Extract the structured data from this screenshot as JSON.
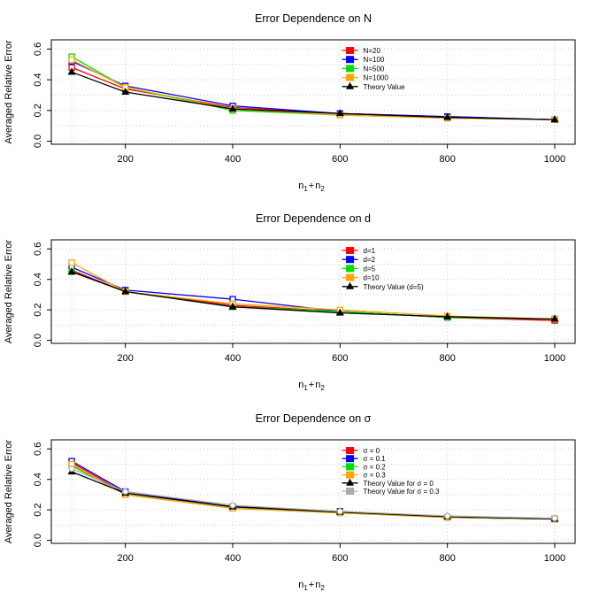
{
  "chart_data": [
    {
      "type": "line",
      "title": "Error Dependence on N",
      "xlabel": "n",
      "xlabel_sub1": "1",
      "xlabel_plus": "+",
      "xlabel_n2": "n",
      "xlabel_sub2": "2",
      "ylabel": "Averaged Relative Error",
      "xlim": [
        62,
        1038
      ],
      "ylim": [
        -0.02,
        0.66
      ],
      "x_ticks": [
        200,
        400,
        600,
        800,
        1000
      ],
      "y_ticks": [
        "0.0",
        "0.2",
        "0.4",
        "0.6"
      ],
      "y_tick_values": [
        0.0,
        0.2,
        0.4,
        0.6
      ],
      "grid": true,
      "legend_position": "top-right",
      "x": [
        100,
        200,
        400,
        600,
        800,
        1000
      ],
      "series": [
        {
          "name": "N=20",
          "color": "#ff0000",
          "marker": "square",
          "values": [
            0.48,
            0.34,
            0.22,
            0.18,
            0.16,
            0.14
          ]
        },
        {
          "name": "N=100",
          "color": "#0000ff",
          "marker": "square",
          "values": [
            0.52,
            0.36,
            0.23,
            0.18,
            0.16,
            0.14
          ]
        },
        {
          "name": "N=500",
          "color": "#00dd00",
          "marker": "square",
          "values": [
            0.55,
            0.35,
            0.2,
            0.17,
            0.15,
            0.14
          ]
        },
        {
          "name": "N=1000",
          "color": "#ffa500",
          "marker": "square",
          "values": [
            0.53,
            0.35,
            0.21,
            0.17,
            0.15,
            0.14
          ]
        },
        {
          "name": "Theory Value",
          "color": "#000000",
          "marker": "triangle",
          "values": [
            0.45,
            0.32,
            0.21,
            0.18,
            0.155,
            0.14
          ]
        }
      ]
    },
    {
      "type": "line",
      "title": "Error Dependence on d",
      "xlabel": "n",
      "xlabel_sub1": "1",
      "xlabel_plus": "+",
      "xlabel_n2": "n",
      "xlabel_sub2": "2",
      "ylabel": "Averaged Relative Error",
      "xlim": [
        62,
        1038
      ],
      "ylim": [
        -0.02,
        0.66
      ],
      "x_ticks": [
        200,
        400,
        600,
        800,
        1000
      ],
      "y_ticks": [
        "0.0",
        "0.2",
        "0.4",
        "0.6"
      ],
      "y_tick_values": [
        0.0,
        0.2,
        0.4,
        0.6
      ],
      "grid": true,
      "legend_position": "top-right",
      "x": [
        100,
        200,
        400,
        600,
        800,
        1000
      ],
      "series": [
        {
          "name": "d=1",
          "color": "#ff0000",
          "marker": "square",
          "values": [
            0.46,
            0.32,
            0.23,
            0.19,
            0.15,
            0.13
          ]
        },
        {
          "name": "d=2",
          "color": "#0000ff",
          "marker": "square",
          "values": [
            0.48,
            0.33,
            0.27,
            0.19,
            0.15,
            0.14
          ]
        },
        {
          "name": "d=5",
          "color": "#00dd00",
          "marker": "square",
          "values": [
            0.45,
            0.32,
            0.22,
            0.19,
            0.15,
            0.14
          ]
        },
        {
          "name": "d=10",
          "color": "#ffa500",
          "marker": "square",
          "values": [
            0.51,
            0.32,
            0.24,
            0.2,
            0.16,
            0.14
          ]
        },
        {
          "name": "Theory Value (d=5)",
          "color": "#000000",
          "marker": "triangle",
          "values": [
            0.45,
            0.32,
            0.22,
            0.18,
            0.155,
            0.14
          ]
        }
      ]
    },
    {
      "type": "line",
      "title": "Error Dependence on σ",
      "xlabel": "n",
      "xlabel_sub1": "1",
      "xlabel_plus": "+",
      "xlabel_n2": "n",
      "xlabel_sub2": "2",
      "ylabel": "Averaged Relative Error",
      "xlim": [
        62,
        1038
      ],
      "ylim": [
        -0.02,
        0.66
      ],
      "x_ticks": [
        200,
        400,
        600,
        800,
        1000
      ],
      "y_ticks": [
        "0.0",
        "0.2",
        "0.4",
        "0.6"
      ],
      "y_tick_values": [
        0.0,
        0.2,
        0.4,
        0.6
      ],
      "grid": true,
      "legend_position": "top-right",
      "x": [
        100,
        200,
        400,
        600,
        800,
        1000
      ],
      "series": [
        {
          "name": "σ = 0",
          "color": "#ff0000",
          "marker": "square",
          "values": [
            0.51,
            0.31,
            0.22,
            0.19,
            0.15,
            0.14
          ]
        },
        {
          "name": "σ = 0.1",
          "color": "#0000ff",
          "marker": "square",
          "values": [
            0.52,
            0.32,
            0.22,
            0.19,
            0.15,
            0.14
          ]
        },
        {
          "name": "σ = 0.2",
          "color": "#00dd00",
          "marker": "square",
          "values": [
            0.49,
            0.3,
            0.21,
            0.18,
            0.15,
            0.14
          ]
        },
        {
          "name": "σ = 0.3",
          "color": "#ffa500",
          "marker": "square",
          "values": [
            0.5,
            0.3,
            0.21,
            0.18,
            0.15,
            0.14
          ]
        },
        {
          "name": "Theory Value for σ = 0",
          "color": "#000000",
          "marker": "triangle",
          "values": [
            0.45,
            0.31,
            0.22,
            0.185,
            0.155,
            0.14
          ]
        },
        {
          "name": "Theory Value for σ = 0.3",
          "color": "#aaaaaa",
          "marker": "circle",
          "values": [
            0.47,
            0.32,
            0.23,
            0.19,
            0.16,
            0.145
          ]
        }
      ]
    }
  ]
}
